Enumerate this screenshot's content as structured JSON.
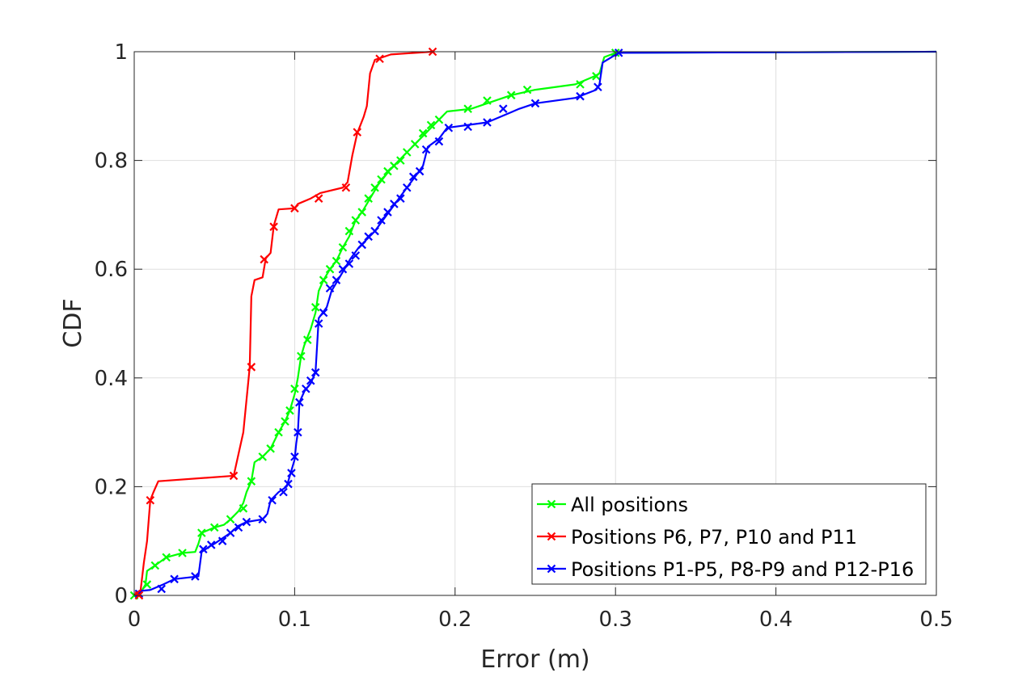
{
  "chart_data": {
    "type": "line",
    "title": "",
    "xlabel": "Error (m)",
    "ylabel": "CDF",
    "xlim": [
      0,
      0.5
    ],
    "ylim": [
      0,
      1
    ],
    "xticks": [
      0,
      0.1,
      0.2,
      0.3,
      0.4,
      0.5
    ],
    "xtick_labels": [
      "0",
      "0.1",
      "0.2",
      "0.3",
      "0.4",
      "0.5"
    ],
    "yticks": [
      0,
      0.2,
      0.4,
      0.6,
      0.8,
      1
    ],
    "ytick_labels": [
      "0",
      "0.2",
      "0.4",
      "0.6",
      "0.8",
      "1"
    ],
    "grid": true,
    "legend_position": "bottom-right",
    "series": [
      {
        "name": "All positions",
        "color": "#00ff00",
        "marker": "x",
        "points": [
          [
            0,
            0
          ],
          [
            0.005,
            0.01
          ],
          [
            0.007,
            0.02
          ],
          [
            0.008,
            0.045
          ],
          [
            0.013,
            0.055
          ],
          [
            0.02,
            0.07
          ],
          [
            0.03,
            0.078
          ],
          [
            0.038,
            0.08
          ],
          [
            0.04,
            0.095
          ],
          [
            0.042,
            0.115
          ],
          [
            0.046,
            0.12
          ],
          [
            0.05,
            0.125
          ],
          [
            0.056,
            0.13
          ],
          [
            0.06,
            0.14
          ],
          [
            0.065,
            0.155
          ],
          [
            0.068,
            0.17
          ],
          [
            0.07,
            0.19
          ],
          [
            0.073,
            0.21
          ],
          [
            0.075,
            0.245
          ],
          [
            0.08,
            0.255
          ],
          [
            0.085,
            0.27
          ],
          [
            0.09,
            0.3
          ],
          [
            0.094,
            0.32
          ],
          [
            0.097,
            0.34
          ],
          [
            0.1,
            0.37
          ],
          [
            0.102,
            0.4
          ],
          [
            0.104,
            0.44
          ],
          [
            0.106,
            0.46
          ],
          [
            0.11,
            0.49
          ],
          [
            0.113,
            0.52
          ],
          [
            0.115,
            0.56
          ],
          [
            0.118,
            0.58
          ],
          [
            0.122,
            0.6
          ],
          [
            0.126,
            0.615
          ],
          [
            0.13,
            0.64
          ],
          [
            0.134,
            0.66
          ],
          [
            0.138,
            0.69
          ],
          [
            0.142,
            0.705
          ],
          [
            0.145,
            0.72
          ],
          [
            0.148,
            0.735
          ],
          [
            0.152,
            0.755
          ],
          [
            0.156,
            0.77
          ],
          [
            0.16,
            0.785
          ],
          [
            0.165,
            0.8
          ],
          [
            0.17,
            0.815
          ],
          [
            0.175,
            0.83
          ],
          [
            0.18,
            0.845
          ],
          [
            0.185,
            0.86
          ],
          [
            0.19,
            0.875
          ],
          [
            0.195,
            0.89
          ],
          [
            0.21,
            0.895
          ],
          [
            0.22,
            0.905
          ],
          [
            0.235,
            0.92
          ],
          [
            0.25,
            0.93
          ],
          [
            0.275,
            0.94
          ],
          [
            0.287,
            0.955
          ],
          [
            0.29,
            0.96
          ],
          [
            0.293,
            0.99
          ],
          [
            0.3,
            0.998
          ],
          [
            0.5,
            1
          ]
        ],
        "markers": [
          [
            0,
            0
          ],
          [
            0.008,
            0.02
          ],
          [
            0.013,
            0.055
          ],
          [
            0.02,
            0.07
          ],
          [
            0.03,
            0.078
          ],
          [
            0.042,
            0.115
          ],
          [
            0.05,
            0.125
          ],
          [
            0.06,
            0.14
          ],
          [
            0.068,
            0.16
          ],
          [
            0.073,
            0.21
          ],
          [
            0.08,
            0.255
          ],
          [
            0.085,
            0.27
          ],
          [
            0.09,
            0.3
          ],
          [
            0.094,
            0.32
          ],
          [
            0.097,
            0.34
          ],
          [
            0.1,
            0.38
          ],
          [
            0.104,
            0.44
          ],
          [
            0.108,
            0.47
          ],
          [
            0.113,
            0.53
          ],
          [
            0.118,
            0.58
          ],
          [
            0.122,
            0.6
          ],
          [
            0.126,
            0.615
          ],
          [
            0.13,
            0.64
          ],
          [
            0.134,
            0.67
          ],
          [
            0.138,
            0.69
          ],
          [
            0.142,
            0.705
          ],
          [
            0.146,
            0.73
          ],
          [
            0.15,
            0.75
          ],
          [
            0.154,
            0.765
          ],
          [
            0.158,
            0.78
          ],
          [
            0.162,
            0.79
          ],
          [
            0.166,
            0.8
          ],
          [
            0.17,
            0.815
          ],
          [
            0.175,
            0.83
          ],
          [
            0.18,
            0.85
          ],
          [
            0.185,
            0.865
          ],
          [
            0.19,
            0.875
          ],
          [
            0.208,
            0.895
          ],
          [
            0.22,
            0.91
          ],
          [
            0.235,
            0.92
          ],
          [
            0.245,
            0.93
          ],
          [
            0.278,
            0.94
          ],
          [
            0.288,
            0.955
          ],
          [
            0.3,
            0.998
          ]
        ]
      },
      {
        "name": "Positions P6, P7, P10 and P11",
        "color": "#ff0000",
        "marker": "x",
        "points": [
          [
            0,
            0
          ],
          [
            0.004,
            0.01
          ],
          [
            0.006,
            0.06
          ],
          [
            0.008,
            0.1
          ],
          [
            0.01,
            0.175
          ],
          [
            0.012,
            0.19
          ],
          [
            0.015,
            0.21
          ],
          [
            0.062,
            0.22
          ],
          [
            0.065,
            0.26
          ],
          [
            0.068,
            0.3
          ],
          [
            0.07,
            0.36
          ],
          [
            0.072,
            0.42
          ],
          [
            0.073,
            0.55
          ],
          [
            0.075,
            0.58
          ],
          [
            0.08,
            0.585
          ],
          [
            0.082,
            0.62
          ],
          [
            0.085,
            0.63
          ],
          [
            0.087,
            0.68
          ],
          [
            0.09,
            0.71
          ],
          [
            0.1,
            0.712
          ],
          [
            0.102,
            0.72
          ],
          [
            0.11,
            0.73
          ],
          [
            0.116,
            0.74
          ],
          [
            0.13,
            0.75
          ],
          [
            0.133,
            0.76
          ],
          [
            0.136,
            0.81
          ],
          [
            0.139,
            0.85
          ],
          [
            0.143,
            0.88
          ],
          [
            0.145,
            0.9
          ],
          [
            0.147,
            0.96
          ],
          [
            0.15,
            0.985
          ],
          [
            0.16,
            0.995
          ],
          [
            0.186,
            1
          ]
        ],
        "markers": [
          [
            0.003,
            0.0
          ],
          [
            0.01,
            0.175
          ],
          [
            0.062,
            0.22
          ],
          [
            0.073,
            0.42
          ],
          [
            0.081,
            0.618
          ],
          [
            0.087,
            0.678
          ],
          [
            0.1,
            0.712
          ],
          [
            0.115,
            0.73
          ],
          [
            0.132,
            0.75
          ],
          [
            0.139,
            0.852
          ],
          [
            0.153,
            0.987
          ],
          [
            0.186,
            1
          ]
        ]
      },
      {
        "name": "Positions P1-P5, P8-P9 and P12-P16",
        "color": "#0000ff",
        "marker": "x",
        "points": [
          [
            0,
            0
          ],
          [
            0.003,
            0.008
          ],
          [
            0.01,
            0.01
          ],
          [
            0.018,
            0.02
          ],
          [
            0.025,
            0.03
          ],
          [
            0.04,
            0.035
          ],
          [
            0.042,
            0.08
          ],
          [
            0.047,
            0.09
          ],
          [
            0.05,
            0.095
          ],
          [
            0.055,
            0.105
          ],
          [
            0.06,
            0.115
          ],
          [
            0.065,
            0.128
          ],
          [
            0.07,
            0.135
          ],
          [
            0.08,
            0.14
          ],
          [
            0.083,
            0.15
          ],
          [
            0.085,
            0.175
          ],
          [
            0.09,
            0.19
          ],
          [
            0.095,
            0.2
          ],
          [
            0.097,
            0.22
          ],
          [
            0.1,
            0.25
          ],
          [
            0.101,
            0.28
          ],
          [
            0.102,
            0.3
          ],
          [
            0.103,
            0.355
          ],
          [
            0.106,
            0.375
          ],
          [
            0.11,
            0.39
          ],
          [
            0.113,
            0.41
          ],
          [
            0.114,
            0.46
          ],
          [
            0.115,
            0.51
          ],
          [
            0.12,
            0.53
          ],
          [
            0.123,
            0.56
          ],
          [
            0.127,
            0.58
          ],
          [
            0.131,
            0.6
          ],
          [
            0.135,
            0.62
          ],
          [
            0.14,
            0.64
          ],
          [
            0.145,
            0.655
          ],
          [
            0.15,
            0.67
          ],
          [
            0.155,
            0.69
          ],
          [
            0.16,
            0.71
          ],
          [
            0.165,
            0.73
          ],
          [
            0.17,
            0.75
          ],
          [
            0.175,
            0.77
          ],
          [
            0.18,
            0.79
          ],
          [
            0.183,
            0.825
          ],
          [
            0.19,
            0.84
          ],
          [
            0.195,
            0.86
          ],
          [
            0.22,
            0.87
          ],
          [
            0.24,
            0.895
          ],
          [
            0.25,
            0.905
          ],
          [
            0.275,
            0.915
          ],
          [
            0.288,
            0.93
          ],
          [
            0.29,
            0.94
          ],
          [
            0.292,
            0.98
          ],
          [
            0.302,
            0.998
          ],
          [
            0.5,
            1
          ]
        ],
        "markers": [
          [
            0.003,
            0.003
          ],
          [
            0.017,
            0.012
          ],
          [
            0.025,
            0.03
          ],
          [
            0.038,
            0.035
          ],
          [
            0.043,
            0.085
          ],
          [
            0.048,
            0.093
          ],
          [
            0.055,
            0.1
          ],
          [
            0.06,
            0.115
          ],
          [
            0.065,
            0.125
          ],
          [
            0.07,
            0.135
          ],
          [
            0.08,
            0.14
          ],
          [
            0.086,
            0.175
          ],
          [
            0.093,
            0.19
          ],
          [
            0.096,
            0.205
          ],
          [
            0.098,
            0.225
          ],
          [
            0.1,
            0.255
          ],
          [
            0.102,
            0.3
          ],
          [
            0.103,
            0.355
          ],
          [
            0.107,
            0.38
          ],
          [
            0.11,
            0.395
          ],
          [
            0.113,
            0.41
          ],
          [
            0.115,
            0.5
          ],
          [
            0.118,
            0.52
          ],
          [
            0.122,
            0.565
          ],
          [
            0.126,
            0.58
          ],
          [
            0.13,
            0.6
          ],
          [
            0.134,
            0.61
          ],
          [
            0.138,
            0.625
          ],
          [
            0.142,
            0.645
          ],
          [
            0.146,
            0.66
          ],
          [
            0.15,
            0.67
          ],
          [
            0.154,
            0.69
          ],
          [
            0.158,
            0.705
          ],
          [
            0.162,
            0.72
          ],
          [
            0.166,
            0.73
          ],
          [
            0.17,
            0.75
          ],
          [
            0.174,
            0.77
          ],
          [
            0.178,
            0.78
          ],
          [
            0.182,
            0.82
          ],
          [
            0.19,
            0.835
          ],
          [
            0.196,
            0.86
          ],
          [
            0.208,
            0.862
          ],
          [
            0.22,
            0.87
          ],
          [
            0.23,
            0.895
          ],
          [
            0.25,
            0.905
          ],
          [
            0.278,
            0.918
          ],
          [
            0.289,
            0.935
          ],
          [
            0.302,
            0.998
          ]
        ]
      }
    ]
  }
}
